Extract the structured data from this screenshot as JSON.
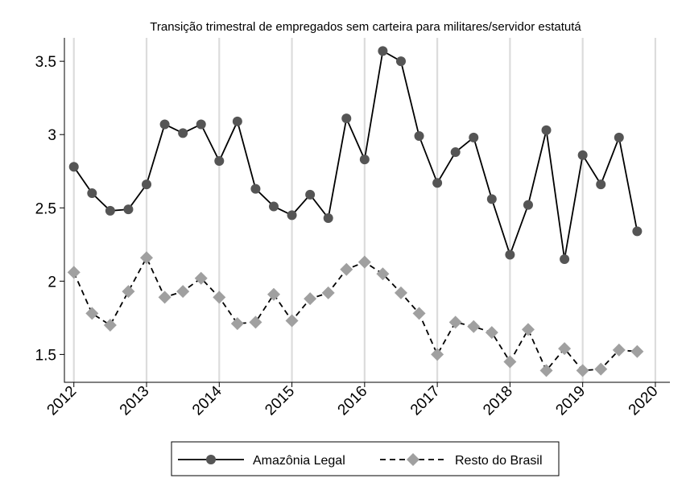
{
  "chart_data": {
    "type": "line",
    "title": "Transição trimestral de empregados sem carteira para militares/servidor estatutá",
    "xlabel": "",
    "ylabel": "",
    "x": [
      2012.0,
      2012.25,
      2012.5,
      2012.75,
      2013.0,
      2013.25,
      2013.5,
      2013.75,
      2014.0,
      2014.25,
      2014.5,
      2014.75,
      2015.0,
      2015.25,
      2015.5,
      2015.75,
      2016.0,
      2016.25,
      2016.5,
      2016.75,
      2017.0,
      2017.25,
      2017.5,
      2017.75,
      2018.0,
      2018.25,
      2018.5,
      2018.75,
      2019.0,
      2019.25,
      2019.5,
      2019.75
    ],
    "xticks": [
      "2012",
      "2013",
      "2014",
      "2015",
      "2016",
      "2017",
      "2018",
      "2019",
      "2020"
    ],
    "xtick_values": [
      2012,
      2013,
      2014,
      2015,
      2016,
      2017,
      2018,
      2019,
      2020
    ],
    "yticks": [
      "1.5",
      "2",
      "2.5",
      "3",
      "3.5"
    ],
    "ytick_values": [
      1.5,
      2,
      2.5,
      3,
      3.5
    ],
    "xlim": [
      2011.87,
      2020.2
    ],
    "ylim": [
      1.31,
      3.66
    ],
    "grid": "vertical",
    "legend_position": "bottom",
    "series": [
      {
        "name": "Amazônia Legal",
        "color": "#555555",
        "line": "solid",
        "marker": "circle",
        "values": [
          2.78,
          2.6,
          2.48,
          2.49,
          2.66,
          3.07,
          3.01,
          3.07,
          2.82,
          3.09,
          2.63,
          2.51,
          2.45,
          2.59,
          2.43,
          3.11,
          2.83,
          3.57,
          3.5,
          2.99,
          2.67,
          2.88,
          2.98,
          2.56,
          2.18,
          2.52,
          3.03,
          2.15,
          2.86,
          2.66,
          2.98,
          2.34
        ]
      },
      {
        "name": "Resto do Brasil",
        "color": "#a0a0a0",
        "line": "dashed",
        "marker": "diamond",
        "values": [
          2.06,
          1.78,
          1.7,
          1.93,
          2.16,
          1.89,
          1.93,
          2.02,
          1.89,
          1.71,
          1.72,
          1.91,
          1.73,
          1.88,
          1.92,
          2.08,
          2.13,
          2.05,
          1.92,
          1.78,
          1.5,
          1.72,
          1.69,
          1.65,
          1.45,
          1.67,
          1.39,
          1.54,
          1.39,
          1.4,
          1.53,
          1.52
        ]
      }
    ]
  }
}
